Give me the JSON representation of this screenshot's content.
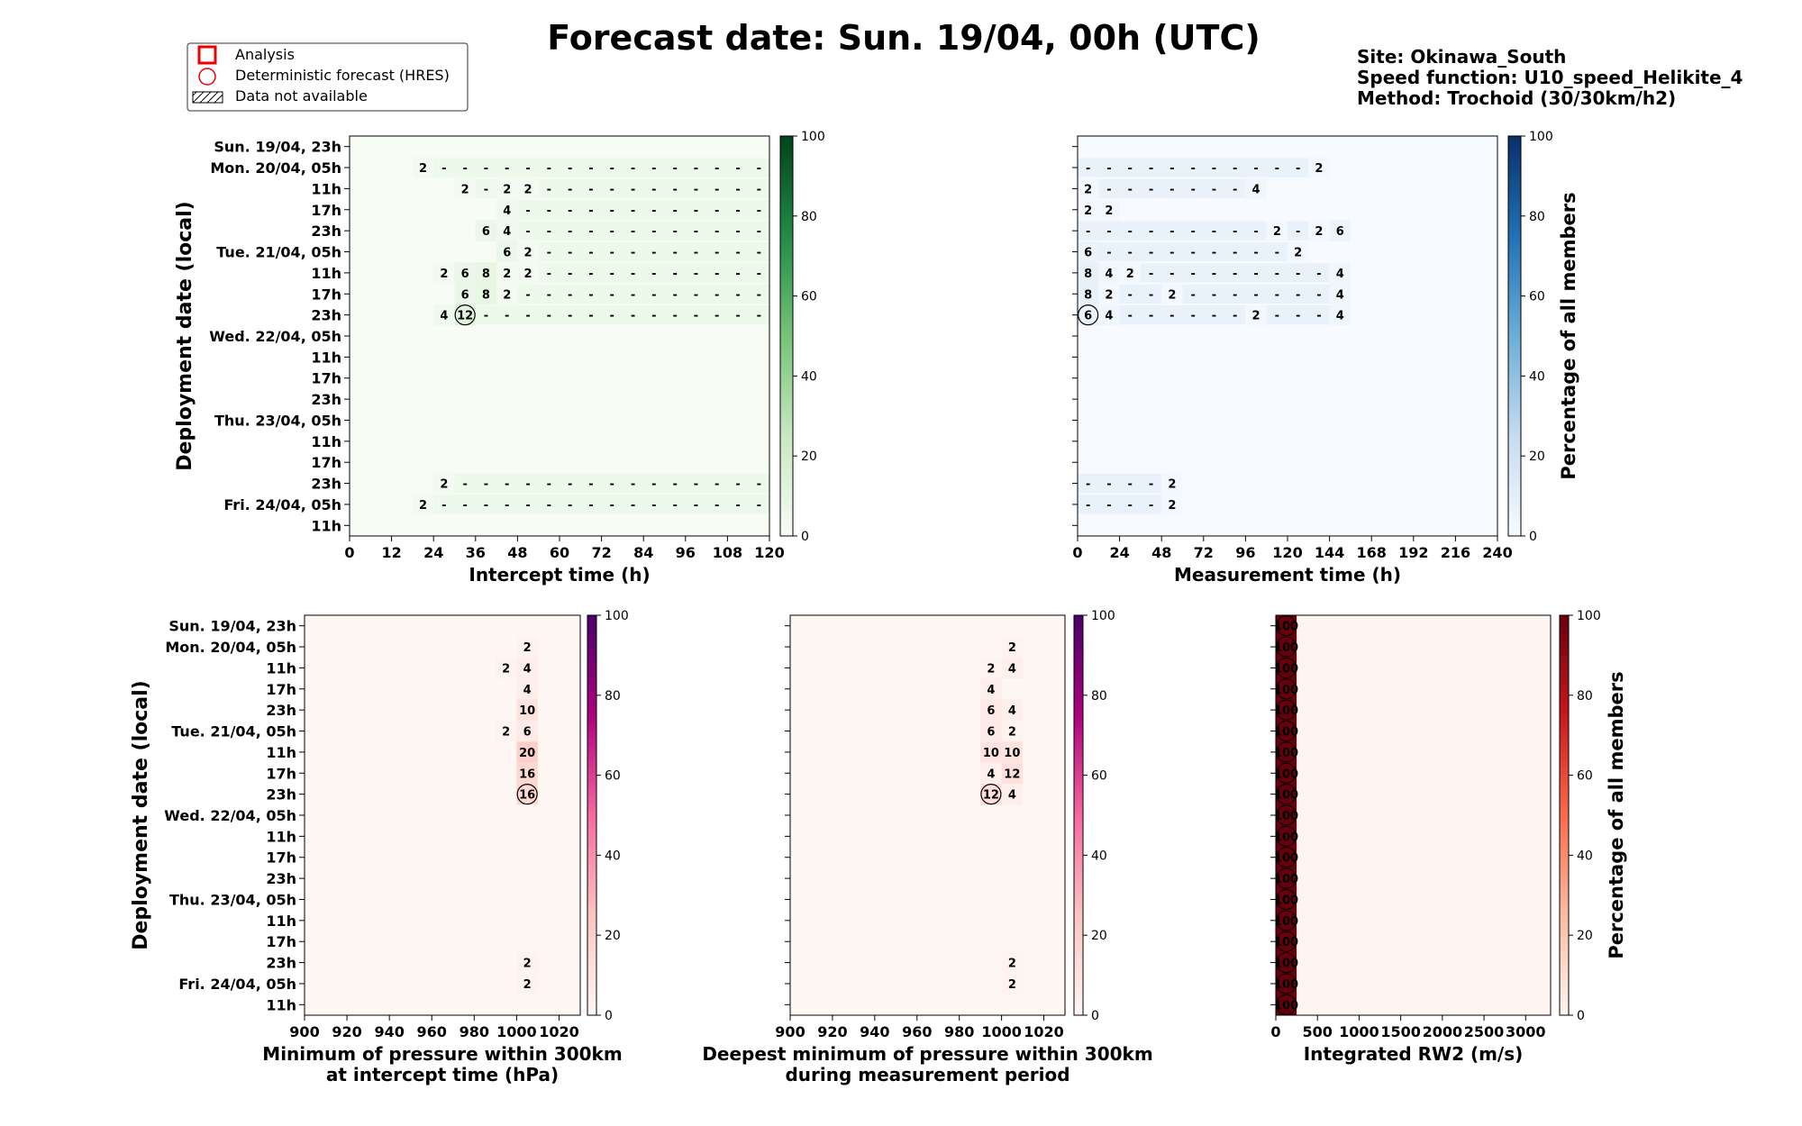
{
  "figure": {
    "title": "Forecast date: Sun. 19/04, 00h (UTC)",
    "info": [
      "Site: Okinawa_South",
      "Speed function: U10_speed_Helikite_4",
      "Method: Trochoid (30/30km/h2)"
    ],
    "legend": [
      "Analysis",
      "Deterministic forecast (HRES)",
      "Data not available"
    ]
  },
  "chart_data": [
    {
      "type": "heatmap",
      "id": "intercept",
      "xlabel": [
        "Intercept time (h)"
      ],
      "ylabel": "Deployment date (local)",
      "xlim": [
        0,
        120
      ],
      "xticks": [
        "0",
        "12",
        "24",
        "36",
        "48",
        "60",
        "72",
        "84",
        "96",
        "108",
        "120"
      ],
      "rows": [
        "Sun. 19/04, 23h",
        "Mon. 20/04, 05h",
        "11h",
        "17h",
        "23h",
        "Tue. 21/04, 05h",
        "11h",
        "17h",
        "23h",
        "Wed. 22/04, 05h",
        "11h",
        "17h",
        "23h",
        "Thu. 23/04, 05h",
        "11h",
        "17h",
        "23h",
        "Fri. 24/04, 05h",
        "11h"
      ],
      "cmap": "Greens",
      "colorbar_ticks": [
        "0",
        "20",
        "40",
        "60",
        "80",
        "100"
      ],
      "cells": [
        [
          1,
          3,
          "2"
        ],
        [
          2,
          5,
          "2"
        ],
        [
          2,
          7,
          "2"
        ],
        [
          2,
          8,
          "2"
        ],
        [
          3,
          7,
          "4"
        ],
        [
          4,
          6,
          "6"
        ],
        [
          4,
          7,
          "4"
        ],
        [
          5,
          7,
          "6"
        ],
        [
          5,
          8,
          "2"
        ],
        [
          6,
          4,
          "2"
        ],
        [
          6,
          5,
          "6"
        ],
        [
          6,
          6,
          "8"
        ],
        [
          6,
          7,
          "2"
        ],
        [
          6,
          8,
          "2"
        ],
        [
          7,
          5,
          "6"
        ],
        [
          7,
          6,
          "8"
        ],
        [
          7,
          7,
          "2"
        ],
        [
          8,
          4,
          "4"
        ],
        [
          8,
          5,
          "12"
        ],
        [
          16,
          4,
          "2"
        ],
        [
          17,
          3,
          "2"
        ]
      ],
      "hres_row": 8
    },
    {
      "type": "heatmap",
      "id": "measurement",
      "xlabel": [
        "Measurement time (h)"
      ],
      "ylabel": "",
      "xlim": [
        0,
        240
      ],
      "xticks": [
        "0",
        "24",
        "48",
        "72",
        "96",
        "120",
        "144",
        "168",
        "192",
        "216",
        "240"
      ],
      "rows": [
        "Sun. 19/04, 23h",
        "Mon. 20/04, 05h",
        "11h",
        "17h",
        "23h",
        "Tue. 21/04, 05h",
        "11h",
        "17h",
        "23h",
        "Wed. 22/04, 05h",
        "11h",
        "17h",
        "23h",
        "Thu. 23/04, 05h",
        "11h",
        "17h",
        "23h",
        "Fri. 24/04, 05h",
        "11h"
      ],
      "cmap": "Blues",
      "colorbar_label": "Percentage of all members",
      "colorbar_ticks": [
        "0",
        "20",
        "40",
        "60",
        "80",
        "100"
      ],
      "cells": [
        [
          1,
          11,
          "2"
        ],
        [
          2,
          0,
          "2"
        ],
        [
          2,
          8,
          "4"
        ],
        [
          3,
          0,
          "2"
        ],
        [
          3,
          1,
          "2"
        ],
        [
          4,
          9,
          "2"
        ],
        [
          4,
          11,
          "2"
        ],
        [
          4,
          12,
          "6"
        ],
        [
          5,
          0,
          "6"
        ],
        [
          5,
          10,
          "2"
        ],
        [
          6,
          0,
          "8"
        ],
        [
          6,
          1,
          "4"
        ],
        [
          6,
          2,
          "2"
        ],
        [
          6,
          12,
          "4"
        ],
        [
          7,
          0,
          "8"
        ],
        [
          7,
          1,
          "2"
        ],
        [
          7,
          4,
          "2"
        ],
        [
          7,
          12,
          "4"
        ],
        [
          8,
          0,
          "6"
        ],
        [
          8,
          1,
          "4"
        ],
        [
          8,
          8,
          "2"
        ],
        [
          8,
          12,
          "4"
        ],
        [
          16,
          4,
          "2"
        ],
        [
          17,
          4,
          "2"
        ]
      ],
      "hres_row": 8
    },
    {
      "type": "heatmap",
      "id": "minpressure",
      "xlabel": [
        "Minimum of pressure within 300km",
        "at intercept time (hPa)"
      ],
      "ylabel": "Deployment date (local)",
      "xlim": [
        900,
        1030
      ],
      "xticks": [
        "900",
        "920",
        "940",
        "960",
        "980",
        "1000",
        "1020"
      ],
      "rows": [
        "Sun. 19/04, 23h",
        "Mon. 20/04, 05h",
        "11h",
        "17h",
        "23h",
        "Tue. 21/04, 05h",
        "11h",
        "17h",
        "23h",
        "Wed. 22/04, 05h",
        "11h",
        "17h",
        "23h",
        "Thu. 23/04, 05h",
        "11h",
        "17h",
        "23h",
        "Fri. 24/04, 05h",
        "11h"
      ],
      "cmap": "RdPu",
      "colorbar_ticks": [
        "0",
        "20",
        "40",
        "60",
        "80",
        "100"
      ],
      "cells": [
        [
          1,
          1005,
          "2"
        ],
        [
          2,
          995,
          "2"
        ],
        [
          2,
          1005,
          "4"
        ],
        [
          3,
          1005,
          "4"
        ],
        [
          4,
          1005,
          "10"
        ],
        [
          5,
          995,
          "2"
        ],
        [
          5,
          1005,
          "6"
        ],
        [
          6,
          1005,
          "20"
        ],
        [
          7,
          1005,
          "16"
        ],
        [
          8,
          1005,
          "16"
        ],
        [
          16,
          1005,
          "2"
        ],
        [
          17,
          1005,
          "2"
        ]
      ],
      "hres_row": 8,
      "hres_bin": 1005
    },
    {
      "type": "heatmap",
      "id": "deepestmin",
      "xlabel": [
        "Deepest minimum of pressure within 300km",
        "during measurement period"
      ],
      "ylabel": "",
      "xlim": [
        900,
        1030
      ],
      "xticks": [
        "900",
        "920",
        "940",
        "960",
        "980",
        "1000",
        "1020"
      ],
      "rows": [
        "Sun. 19/04, 23h",
        "Mon. 20/04, 05h",
        "11h",
        "17h",
        "23h",
        "Tue. 21/04, 05h",
        "11h",
        "17h",
        "23h",
        "Wed. 22/04, 05h",
        "11h",
        "17h",
        "23h",
        "Thu. 23/04, 05h",
        "11h",
        "17h",
        "23h",
        "Fri. 24/04, 05h",
        "11h"
      ],
      "cmap": "RdPu",
      "colorbar_ticks": [
        "0",
        "20",
        "40",
        "60",
        "80",
        "100"
      ],
      "cells": [
        [
          1,
          1005,
          "2"
        ],
        [
          2,
          995,
          "2"
        ],
        [
          2,
          1005,
          "4"
        ],
        [
          3,
          995,
          "4"
        ],
        [
          4,
          995,
          "6"
        ],
        [
          4,
          1005,
          "4"
        ],
        [
          5,
          995,
          "6"
        ],
        [
          5,
          1005,
          "2"
        ],
        [
          6,
          995,
          "10"
        ],
        [
          6,
          1005,
          "10"
        ],
        [
          7,
          995,
          "4"
        ],
        [
          7,
          1005,
          "12"
        ],
        [
          8,
          995,
          "12"
        ],
        [
          8,
          1005,
          "4"
        ],
        [
          16,
          1005,
          "2"
        ],
        [
          17,
          1005,
          "2"
        ]
      ],
      "hres_row": 8,
      "hres_bin": 995
    },
    {
      "type": "heatmap",
      "id": "rw2",
      "xlabel": [
        "Integrated RW2 (m/s)"
      ],
      "ylabel": "",
      "xlim": [
        0,
        3300
      ],
      "xticks": [
        "0",
        "500",
        "1000",
        "1500",
        "2000",
        "2500",
        "3000"
      ],
      "rows": [
        "Sun. 19/04, 23h",
        "Mon. 20/04, 05h",
        "11h",
        "17h",
        "23h",
        "Tue. 21/04, 05h",
        "11h",
        "17h",
        "23h",
        "Wed. 22/04, 05h",
        "11h",
        "17h",
        "23h",
        "Thu. 23/04, 05h",
        "11h",
        "17h",
        "23h",
        "Fri. 24/04, 05h",
        "11h"
      ],
      "cmap": "Reds",
      "colorbar_label": "Percentage of all members",
      "colorbar_ticks": [
        "0",
        "20",
        "40",
        "60",
        "80",
        "100"
      ],
      "column_bin": [
        0,
        250
      ],
      "column_value": "100"
    }
  ]
}
